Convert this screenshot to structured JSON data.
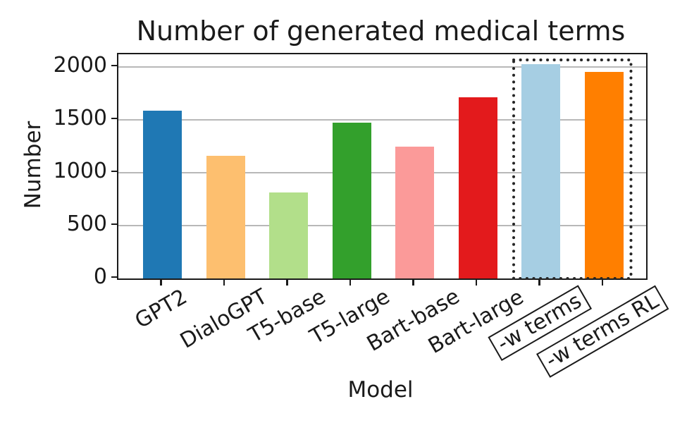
{
  "chart_data": {
    "type": "bar",
    "title": "Number of generated medical terms",
    "xlabel": "Model",
    "ylabel": "Number",
    "ylim": [
      0,
      2120
    ],
    "yticks": [
      0,
      500,
      1000,
      1500,
      2000
    ],
    "grid": "horizontal",
    "legend": "none",
    "categories": [
      "GPT2",
      "DialoGPT",
      "T5-base",
      "T5-large",
      "Bart-base",
      "Bart-large",
      "-w terms",
      "-w terms RL"
    ],
    "values": [
      1590,
      1160,
      815,
      1475,
      1245,
      1715,
      2025,
      1955
    ],
    "colors": [
      "#1f78b4",
      "#fdbf6f",
      "#b2df8a",
      "#33a02c",
      "#fb9a99",
      "#e31a1c",
      "#a6cee3",
      "#ff7f00"
    ],
    "xtick_rotation_deg": 30,
    "boxed_tick_labels": [
      "-w terms",
      "-w terms RL"
    ],
    "highlight": {
      "style": "dotted-box",
      "indices": [
        6,
        7
      ],
      "color": "#262626"
    },
    "grid_color": "#b8b8b8",
    "axis_color": "#1a1a1a"
  }
}
